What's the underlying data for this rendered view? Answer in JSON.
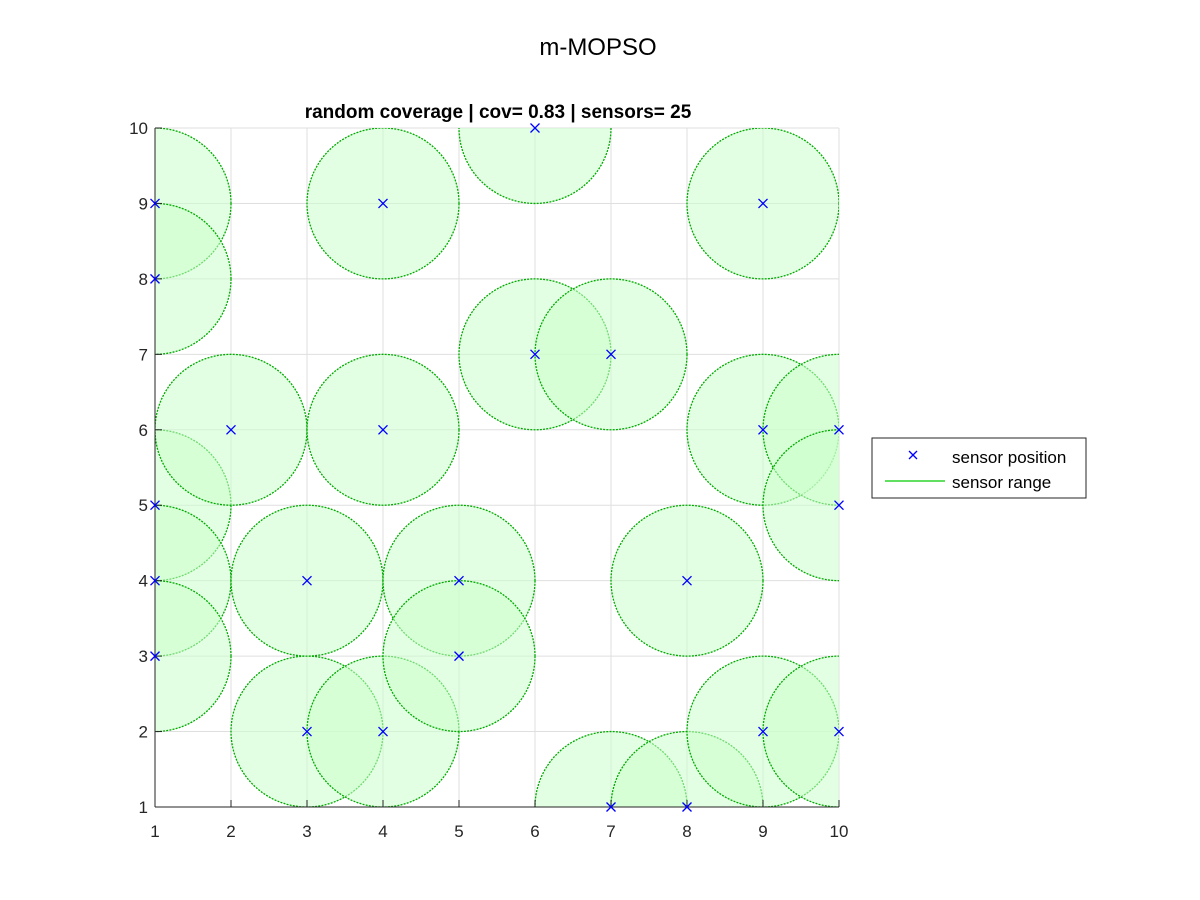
{
  "figure_title": "m-MOPSO",
  "chart_data": {
    "type": "scatter",
    "title": "random coverage | cov= 0.83 | sensors= 25",
    "xlabel": "",
    "ylabel": "",
    "xlim": [
      1,
      10
    ],
    "ylim": [
      1,
      10
    ],
    "xticks": [
      "1",
      "2",
      "3",
      "4",
      "5",
      "6",
      "7",
      "8",
      "9",
      "10"
    ],
    "yticks": [
      "1",
      "2",
      "3",
      "4",
      "5",
      "6",
      "7",
      "8",
      "9",
      "10"
    ],
    "grid": true,
    "legend_position": "right-outside",
    "sensor_range": 1,
    "colors": {
      "marker": "#0000ff",
      "range_edge": "#00aa00",
      "range_fill": "#ccffcc",
      "legend_line": "#00cc00"
    },
    "series": [
      {
        "name": "sensor position",
        "points": [
          {
            "x": 1,
            "y": 9
          },
          {
            "x": 1,
            "y": 8
          },
          {
            "x": 1,
            "y": 5
          },
          {
            "x": 1,
            "y": 4
          },
          {
            "x": 1,
            "y": 3
          },
          {
            "x": 2,
            "y": 6
          },
          {
            "x": 3,
            "y": 4
          },
          {
            "x": 3,
            "y": 2
          },
          {
            "x": 4,
            "y": 9
          },
          {
            "x": 4,
            "y": 6
          },
          {
            "x": 4,
            "y": 2
          },
          {
            "x": 5,
            "y": 4
          },
          {
            "x": 5,
            "y": 3
          },
          {
            "x": 6,
            "y": 10
          },
          {
            "x": 6,
            "y": 7
          },
          {
            "x": 7,
            "y": 7
          },
          {
            "x": 7,
            "y": 1
          },
          {
            "x": 8,
            "y": 4
          },
          {
            "x": 8,
            "y": 1
          },
          {
            "x": 9,
            "y": 9
          },
          {
            "x": 9,
            "y": 6
          },
          {
            "x": 9,
            "y": 2
          },
          {
            "x": 10,
            "y": 6
          },
          {
            "x": 10,
            "y": 5
          },
          {
            "x": 10,
            "y": 2
          }
        ]
      },
      {
        "name": "sensor range"
      }
    ]
  }
}
